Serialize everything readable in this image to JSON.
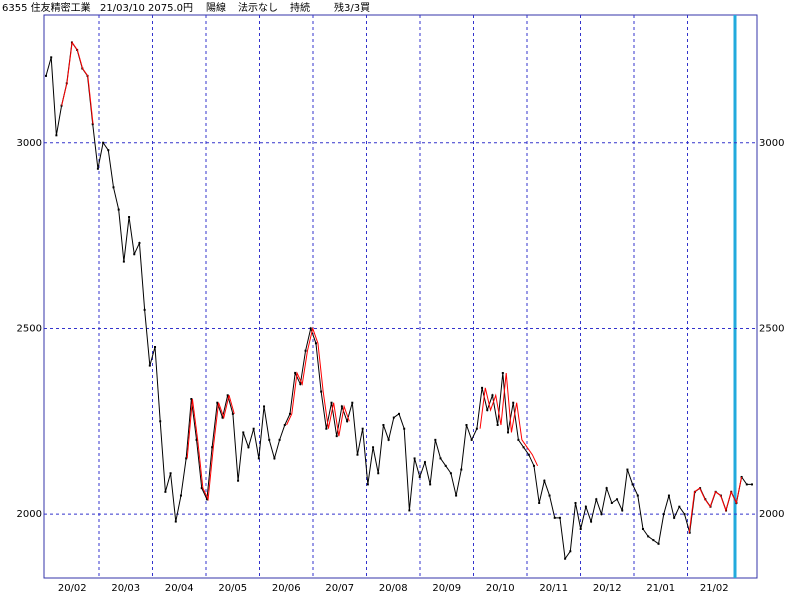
{
  "chart_data": {
    "type": "line",
    "header": [
      "6355 住友精密工業",
      "21/03/10",
      "2075.0円",
      "陽線",
      "法示なし",
      "持続",
      "残3/3買"
    ],
    "months": [
      "20/02",
      "20/03",
      "20/04",
      "20/05",
      "20/06",
      "20/07",
      "20/08",
      "20/09",
      "20/10",
      "20/11",
      "20/12",
      "21/01",
      "21/02"
    ],
    "ylim": [
      1828,
      3344
    ],
    "yticks": [
      2000,
      2500,
      3000
    ],
    "grid": true,
    "series": [
      {
        "color": "#000000",
        "values": [
          3180,
          3230,
          3020,
          3100,
          3160,
          3270,
          3250,
          3200,
          3180,
          3050,
          2930,
          3000,
          2980,
          2880,
          2820,
          2680,
          2800,
          2700,
          2730,
          2550,
          2400,
          2450,
          2250,
          2060,
          2110,
          1980,
          2050,
          2150,
          2310,
          2200,
          2070,
          2040,
          2180,
          2300,
          2260,
          2320,
          2270,
          2090,
          2220,
          2180,
          2230,
          2150,
          2290,
          2200,
          2150,
          2200,
          2240,
          2270,
          2380,
          2350,
          2440,
          2500,
          2460,
          2330,
          2230,
          2300,
          2210,
          2290,
          2250,
          2300,
          2160,
          2230,
          2080,
          2180,
          2110,
          2240,
          2200,
          2260,
          2270,
          2230,
          2010,
          2150,
          2100,
          2140,
          2080,
          2200,
          2150,
          2130,
          2110,
          2050,
          2120,
          2240,
          2200,
          2230,
          2340,
          2280,
          2320,
          2240,
          2380,
          2220,
          2300,
          2200,
          2180,
          2160,
          2130,
          2030,
          2090,
          2050,
          1990,
          1990,
          1880,
          1900,
          2030,
          1960,
          2020,
          1980,
          2040,
          2000,
          2070,
          2030,
          2040,
          2010,
          2120,
          2080,
          2050,
          1960,
          1940,
          1930,
          1920,
          2000,
          2050,
          1990,
          2020,
          2000,
          1950,
          2060,
          2070,
          2040,
          2020,
          2060,
          2050,
          2010,
          2060,
          2030,
          2100,
          2080,
          2080
        ]
      },
      {
        "color": "#ff0000",
        "values": [
          null,
          null,
          null,
          3100,
          3160,
          3270,
          3250,
          3200,
          3180,
          3050,
          null,
          null,
          null,
          null,
          null,
          null,
          null,
          null,
          null,
          null,
          null,
          null,
          null,
          null,
          null,
          null,
          null,
          2150,
          2310,
          2200,
          2070,
          2040,
          2180,
          2300,
          2260,
          2320,
          2270,
          null,
          null,
          null,
          null,
          null,
          null,
          null,
          null,
          null,
          2240,
          2270,
          2380,
          2350,
          2440,
          2500,
          2460,
          2330,
          2230,
          2300,
          2210,
          2290,
          2250,
          null,
          null,
          null,
          null,
          null,
          null,
          null,
          null,
          null,
          null,
          null,
          null,
          null,
          null,
          null,
          null,
          null,
          null,
          null,
          null,
          null,
          null,
          null,
          null,
          2230,
          2340,
          2280,
          2320,
          2240,
          2380,
          2220,
          2300,
          2200,
          2180,
          2160,
          2130,
          null,
          null,
          null,
          null,
          null,
          null,
          null,
          null,
          null,
          null,
          null,
          null,
          null,
          null,
          null,
          null,
          null,
          null,
          null,
          null,
          null,
          null,
          null,
          null,
          null,
          null,
          null,
          null,
          1950,
          2060,
          2070,
          2040,
          2020,
          2060,
          2050,
          2010,
          2060,
          2030,
          2100,
          null,
          null
        ]
      }
    ]
  }
}
